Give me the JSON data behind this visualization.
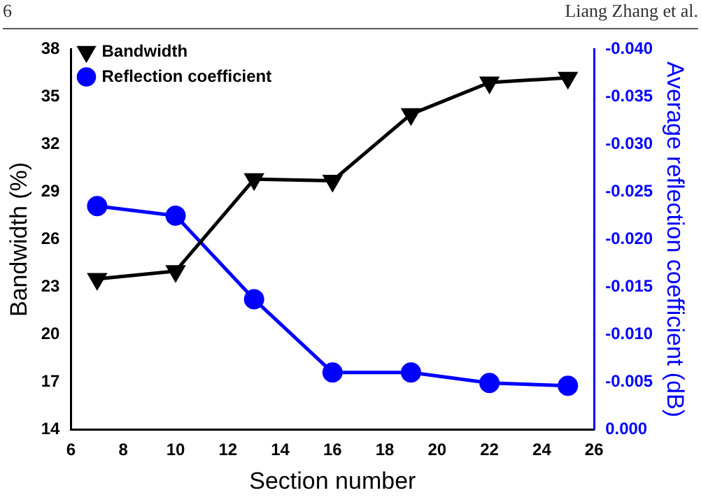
{
  "chart_data": {
    "type": "line",
    "xlabel": "Section number",
    "ylabel": "Bandwidth (%)",
    "y2label": "Average reflection coefficient (dB)",
    "annotations": [
      "6",
      "Liang Zhang et al."
    ],
    "xlim": [
      6,
      26
    ],
    "xticks": [
      6,
      8,
      10,
      12,
      14,
      16,
      18,
      20,
      22,
      24,
      26
    ],
    "ylim": [
      14,
      38
    ],
    "yticks": [
      14,
      17,
      20,
      23,
      26,
      29,
      32,
      35,
      38
    ],
    "y2lim": [
      0,
      -0.04
    ],
    "y2ticks": [
      {
        "value": 0,
        "label": "0.000"
      },
      {
        "value": -0.005,
        "label": "-0.005"
      },
      {
        "value": -0.01,
        "label": "-0.010"
      },
      {
        "value": -0.015,
        "label": "-0.015"
      },
      {
        "value": -0.02,
        "label": "-0.020"
      },
      {
        "value": -0.025,
        "label": "-0.025"
      },
      {
        "value": -0.03,
        "label": "-0.030"
      },
      {
        "value": -0.035,
        "label": "-0.035"
      },
      {
        "value": -0.04,
        "label": "-0.040"
      }
    ],
    "x": [
      7,
      10,
      13,
      16,
      19,
      22,
      25
    ],
    "series": [
      {
        "name": "Bandwidth",
        "color": "#000000",
        "marker": "triangle",
        "values": [
          23.5,
          24.0,
          29.8,
          29.7,
          33.9,
          35.9,
          36.2
        ]
      },
      {
        "name": "Reflection coefficient",
        "color": "#0000ff",
        "marker": "circle",
        "axis": "y2",
        "values": [
          -0.0235,
          -0.0225,
          -0.0137,
          -0.006,
          -0.006,
          -0.0049,
          -0.0046
        ]
      }
    ],
    "legend": "top left",
    "grid": false
  }
}
